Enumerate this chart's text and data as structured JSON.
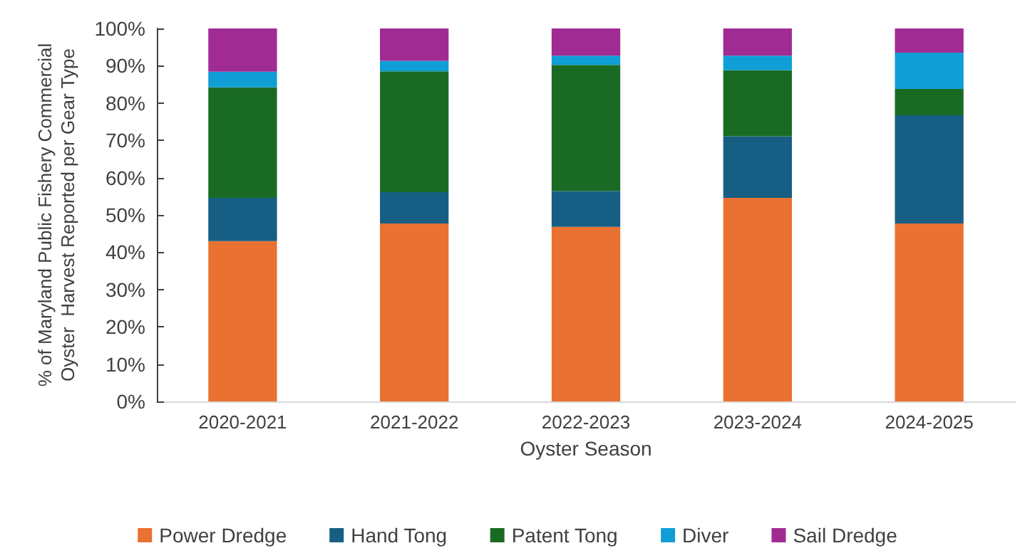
{
  "chart_data": {
    "type": "bar",
    "stacked": true,
    "xlabel": "Oyster Season",
    "ylabel": "% of Maryland Public Fishery Commercial\nOyster  Harvest Reported per Gear Type",
    "categories": [
      "2020-2021",
      "2021-2022",
      "2022-2023",
      "2023-2024",
      "2024-2025"
    ],
    "series": [
      {
        "name": "Power Dredge",
        "color": "#e97132",
        "values": [
          43.0,
          47.7,
          46.8,
          54.6,
          47.7
        ]
      },
      {
        "name": "Hand Tong",
        "color": "#165e83",
        "values": [
          11.6,
          8.4,
          9.6,
          16.5,
          29.0
        ]
      },
      {
        "name": "Patent Tong",
        "color": "#196b24",
        "values": [
          29.6,
          32.4,
          33.8,
          17.7,
          7.1
        ]
      },
      {
        "name": "Diver",
        "color": "#0f9ed5",
        "values": [
          4.2,
          2.8,
          2.5,
          3.9,
          9.7
        ]
      },
      {
        "name": "Sail Dredge",
        "color": "#a02b93",
        "values": [
          11.6,
          8.7,
          7.3,
          7.3,
          6.5
        ]
      }
    ],
    "ylim": [
      0,
      100
    ],
    "yticks": [
      {
        "value": 0,
        "label": "0%"
      },
      {
        "value": 10,
        "label": "10%"
      },
      {
        "value": 20,
        "label": "20%"
      },
      {
        "value": 30,
        "label": "30%"
      },
      {
        "value": 40,
        "label": "40%"
      },
      {
        "value": 50,
        "label": "50%"
      },
      {
        "value": 60,
        "label": "60%"
      },
      {
        "value": 70,
        "label": "70%"
      },
      {
        "value": 80,
        "label": "80%"
      },
      {
        "value": 90,
        "label": "90%"
      },
      {
        "value": 100,
        "label": "100%"
      }
    ],
    "grid": false,
    "legend": "bottom"
  }
}
